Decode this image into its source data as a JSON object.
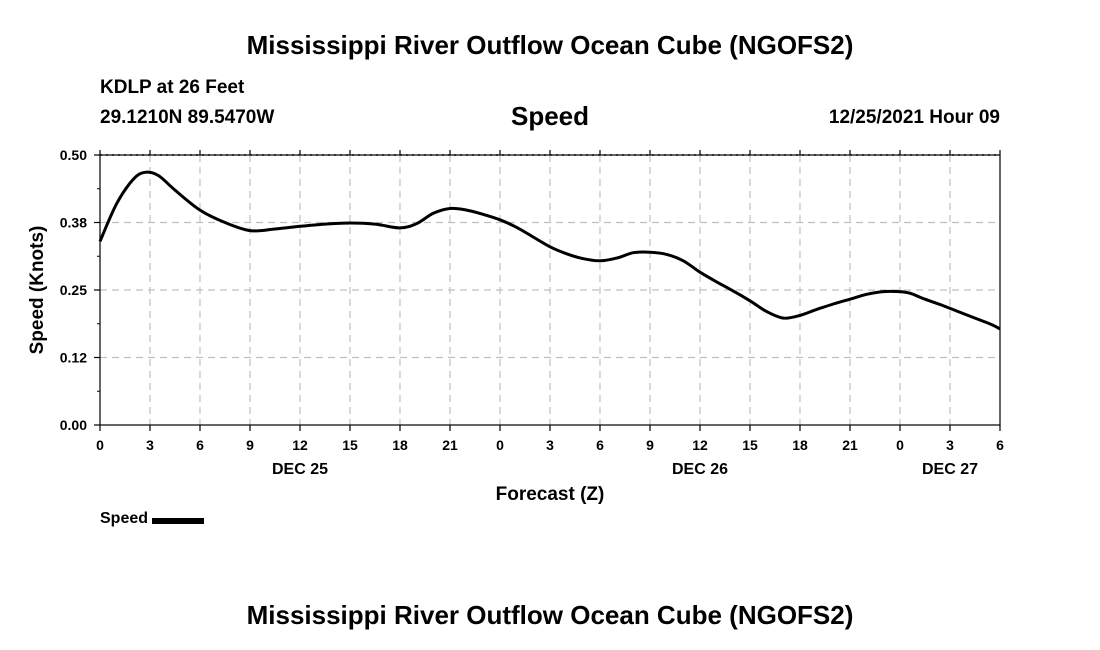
{
  "header": {
    "title": "Mississippi River Outflow Ocean Cube (NGOFS2)",
    "station": "KDLP at 26 Feet",
    "coordinates": "29.1210N  89.5470W",
    "datetime": "12/25/2021 Hour 09"
  },
  "footer": {
    "title": "Mississippi River Outflow Ocean Cube (NGOFS2)"
  },
  "chart_data": {
    "type": "line",
    "title": "Speed",
    "xlabel": "Forecast (Z)",
    "ylabel": "Speed (Knots)",
    "xlim": [
      0,
      54
    ],
    "ylim": [
      0,
      0.5
    ],
    "y_ticks": [
      0.0,
      0.125,
      0.25,
      0.375,
      0.5
    ],
    "y_tick_labels": [
      "0.00",
      "0.12",
      "0.25",
      "0.38",
      "0.50"
    ],
    "x_ticks": [
      0,
      3,
      6,
      9,
      12,
      15,
      18,
      21,
      24,
      27,
      30,
      33,
      36,
      39,
      42,
      45,
      48,
      51,
      54
    ],
    "x_tick_labels": [
      "0",
      "3",
      "6",
      "9",
      "12",
      "15",
      "18",
      "21",
      "0",
      "3",
      "6",
      "9",
      "12",
      "15",
      "18",
      "21",
      "0",
      "3",
      "6"
    ],
    "date_labels": [
      {
        "x": 12,
        "label": "DEC 25"
      },
      {
        "x": 36,
        "label": "DEC 26"
      },
      {
        "x": 51,
        "label": "DEC 27"
      }
    ],
    "grid": true,
    "legend": "bottom-left",
    "series": [
      {
        "name": "Speed",
        "color": "#000000",
        "x": [
          0,
          1,
          2,
          2.7,
          3.5,
          4.5,
          6,
          7.5,
          9,
          10.5,
          12,
          13.5,
          15,
          16.5,
          18,
          19,
          20,
          21,
          22,
          23,
          24,
          25,
          26,
          27,
          28,
          29,
          30,
          31,
          32,
          33,
          34,
          35,
          36,
          37,
          38,
          39,
          40,
          41,
          42,
          43,
          44,
          45,
          46,
          47,
          48,
          48.6,
          49.5,
          50.5,
          51.5,
          52.5,
          53.5,
          54
        ],
        "values": [
          0.34,
          0.41,
          0.455,
          0.468,
          0.462,
          0.435,
          0.398,
          0.375,
          0.36,
          0.363,
          0.368,
          0.372,
          0.374,
          0.372,
          0.365,
          0.373,
          0.392,
          0.401,
          0.398,
          0.39,
          0.38,
          0.366,
          0.348,
          0.33,
          0.317,
          0.308,
          0.304,
          0.309,
          0.319,
          0.32,
          0.316,
          0.304,
          0.283,
          0.265,
          0.248,
          0.23,
          0.21,
          0.198,
          0.203,
          0.214,
          0.224,
          0.233,
          0.242,
          0.247,
          0.247,
          0.244,
          0.233,
          0.222,
          0.21,
          0.198,
          0.186,
          0.178
        ]
      }
    ]
  }
}
